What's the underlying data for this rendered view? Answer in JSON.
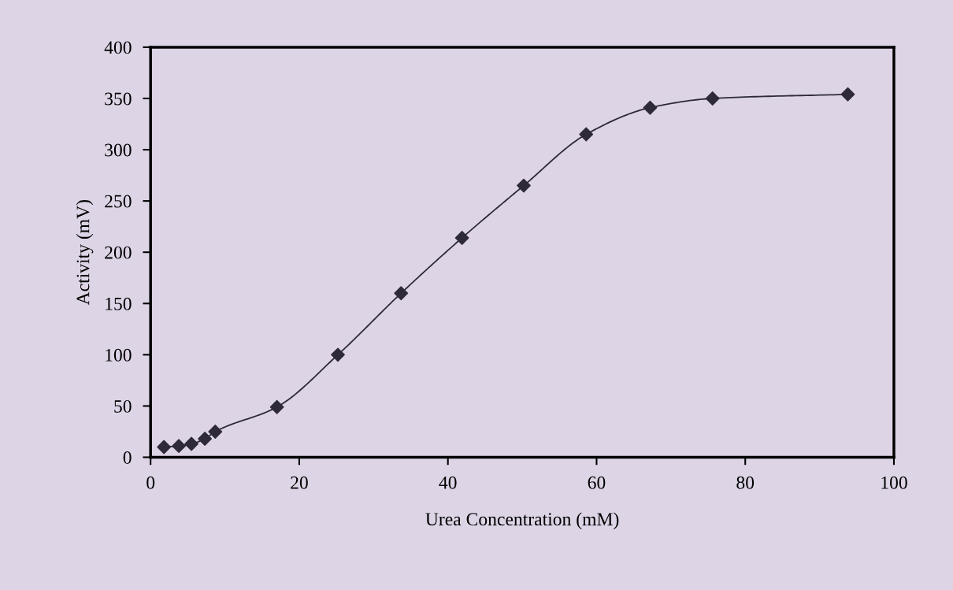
{
  "chart_data": {
    "type": "line",
    "xlabel": "Urea Concentration (mM)",
    "ylabel": "Activity (mV)",
    "xlim": [
      0,
      100
    ],
    "xticks": [
      0,
      20,
      40,
      60,
      80,
      100
    ],
    "ylim": [
      0,
      400
    ],
    "yticks": [
      0,
      50,
      100,
      150,
      200,
      250,
      300,
      350,
      400
    ],
    "grid": false,
    "marker": "diamond",
    "line_style": "solid",
    "series": [
      {
        "color": "#2e2a3a",
        "x": [
          1.8,
          3.8,
          5.5,
          7.3,
          8.7,
          17.0,
          25.2,
          33.7,
          41.9,
          50.2,
          58.6,
          67.2,
          75.6,
          93.8
        ],
        "values": [
          10,
          11,
          13,
          18,
          25,
          49,
          100,
          160,
          214,
          265,
          315,
          341,
          350,
          354
        ]
      }
    ]
  }
}
